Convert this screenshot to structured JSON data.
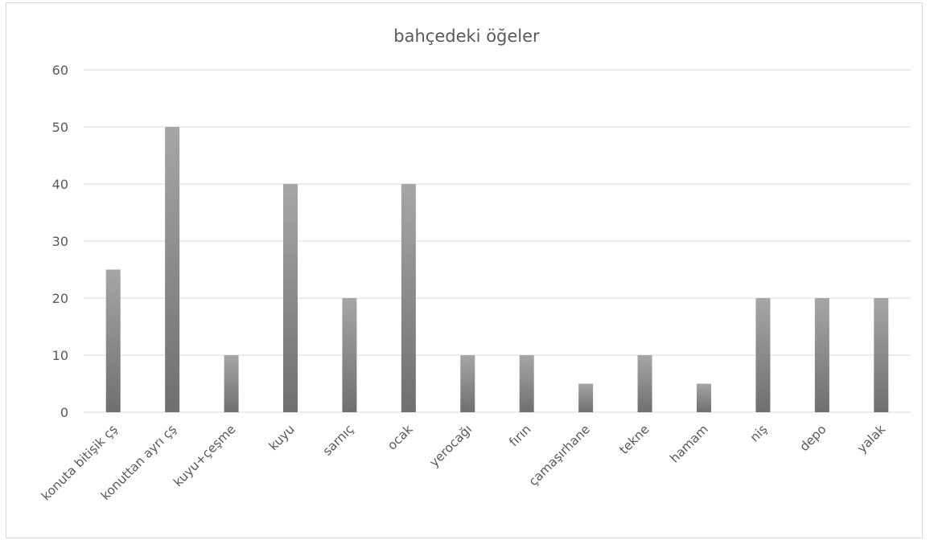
{
  "chart_data": {
    "type": "bar",
    "title": "bahçedeki öğeler",
    "categories": [
      "konuta bitişik çş",
      "konuttan ayrı çş",
      "kuyu+çeşme",
      "kuyu",
      "sarnıç",
      "ocak",
      "yerocağı",
      "fırın",
      "çamaşırhane",
      "tekne",
      "hamam",
      "niş",
      "depo",
      "yalak"
    ],
    "values": [
      25,
      50,
      10,
      40,
      20,
      40,
      10,
      10,
      5,
      10,
      5,
      20,
      20,
      20
    ],
    "ylim": [
      0,
      60
    ],
    "yticks": [
      "0",
      "10",
      "20",
      "30",
      "40",
      "50",
      "60"
    ],
    "xlabel": "",
    "ylabel": "",
    "grid": true,
    "legend": "none",
    "colors": {
      "bar_light": "#a6a6a6",
      "bar_dark": "#6f6f6f",
      "grid": "#d9d9d9",
      "text": "#595959"
    }
  }
}
